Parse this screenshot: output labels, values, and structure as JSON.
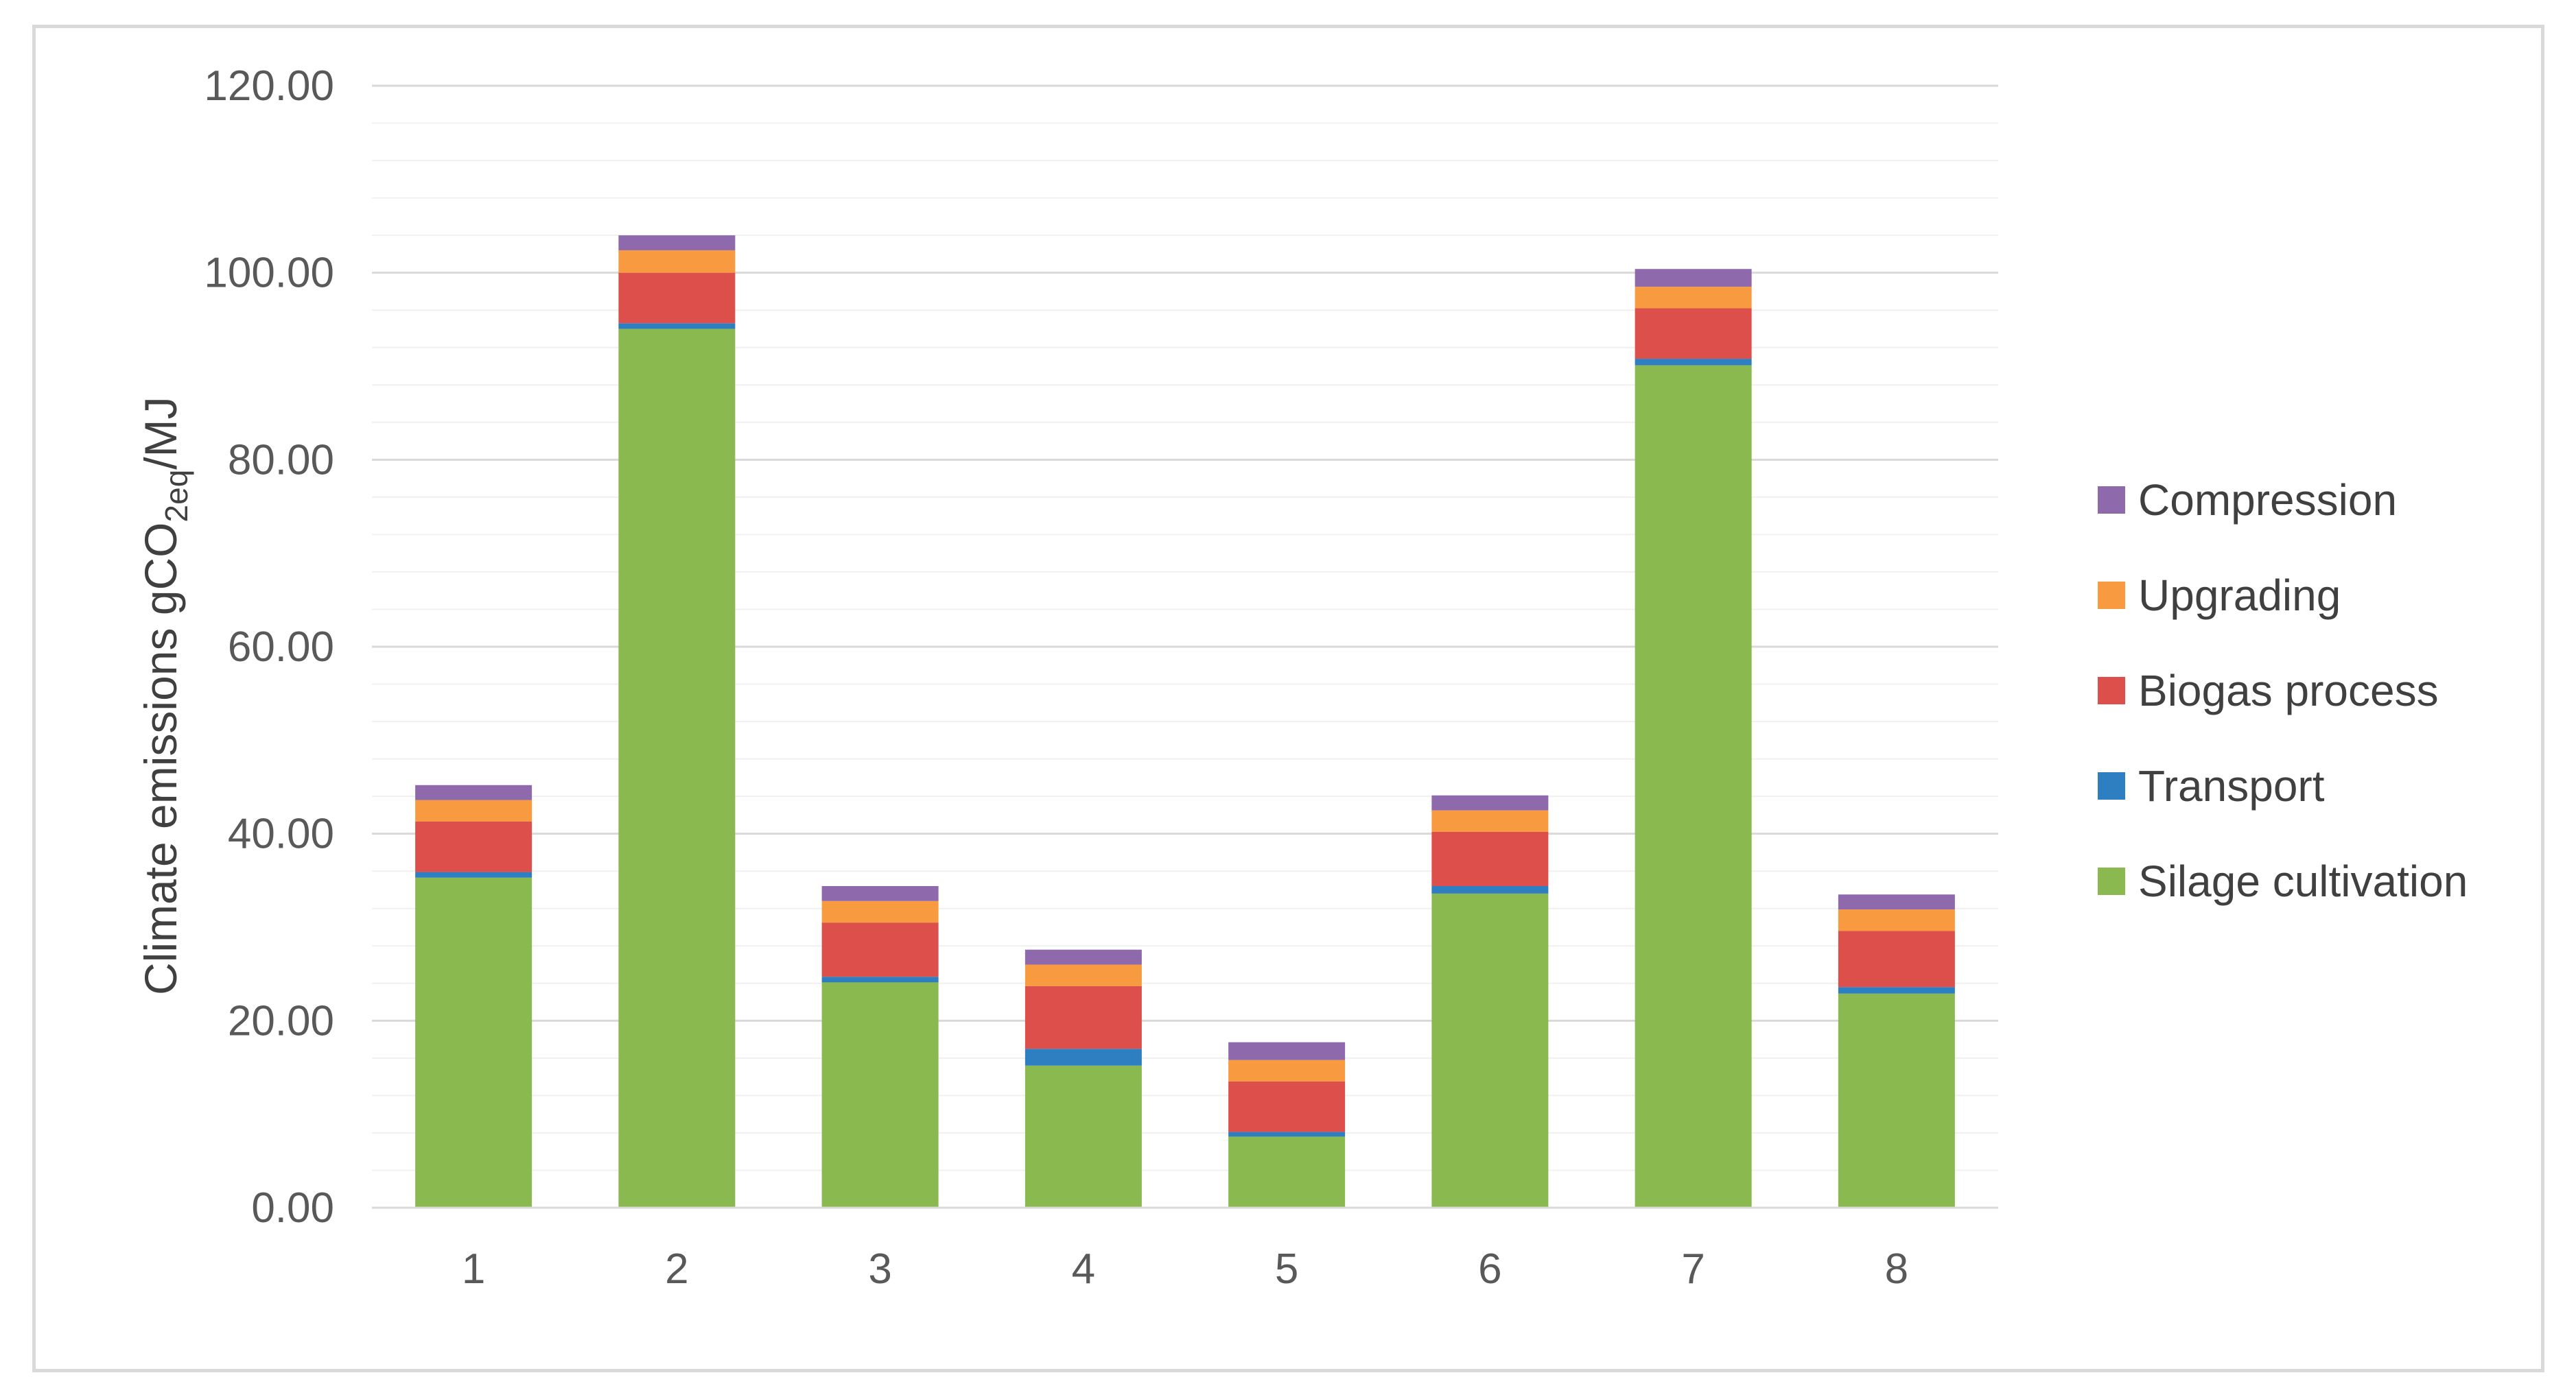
{
  "chart_data": {
    "type": "bar",
    "stacked": true,
    "categories": [
      "1",
      "2",
      "3",
      "4",
      "5",
      "6",
      "7",
      "8"
    ],
    "series": [
      {
        "name": "Silage cultivation",
        "color": "#8ab94f",
        "values": [
          35.3,
          94.0,
          24.1,
          15.2,
          7.6,
          33.6,
          90.1,
          22.9
        ]
      },
      {
        "name": "Transport",
        "color": "#2e7fc1",
        "values": [
          0.6,
          0.6,
          0.6,
          1.8,
          0.5,
          0.8,
          0.7,
          0.7
        ]
      },
      {
        "name": "Biogas process",
        "color": "#dd4f4a",
        "values": [
          5.4,
          5.4,
          5.8,
          6.7,
          5.4,
          5.8,
          5.4,
          6.0
        ]
      },
      {
        "name": "Upgrading",
        "color": "#f79a40",
        "values": [
          2.3,
          2.4,
          2.3,
          2.3,
          2.3,
          2.3,
          2.3,
          2.3
        ]
      },
      {
        "name": "Compression",
        "color": "#8e6aad",
        "values": [
          1.6,
          1.6,
          1.6,
          1.6,
          1.9,
          1.6,
          1.9,
          1.6
        ]
      }
    ],
    "yticks": [
      "0.00",
      "20.00",
      "40.00",
      "60.00",
      "80.00",
      "100.00",
      "120.00"
    ],
    "ylim": [
      0,
      120
    ],
    "ylabel_main": "Climate emissions gCO",
    "ylabel_sub": "2eq",
    "ylabel_suffix": "/MJ",
    "xlabel": "",
    "title": "",
    "legend_position": "right",
    "grid": true,
    "minor_gridlines": true
  }
}
